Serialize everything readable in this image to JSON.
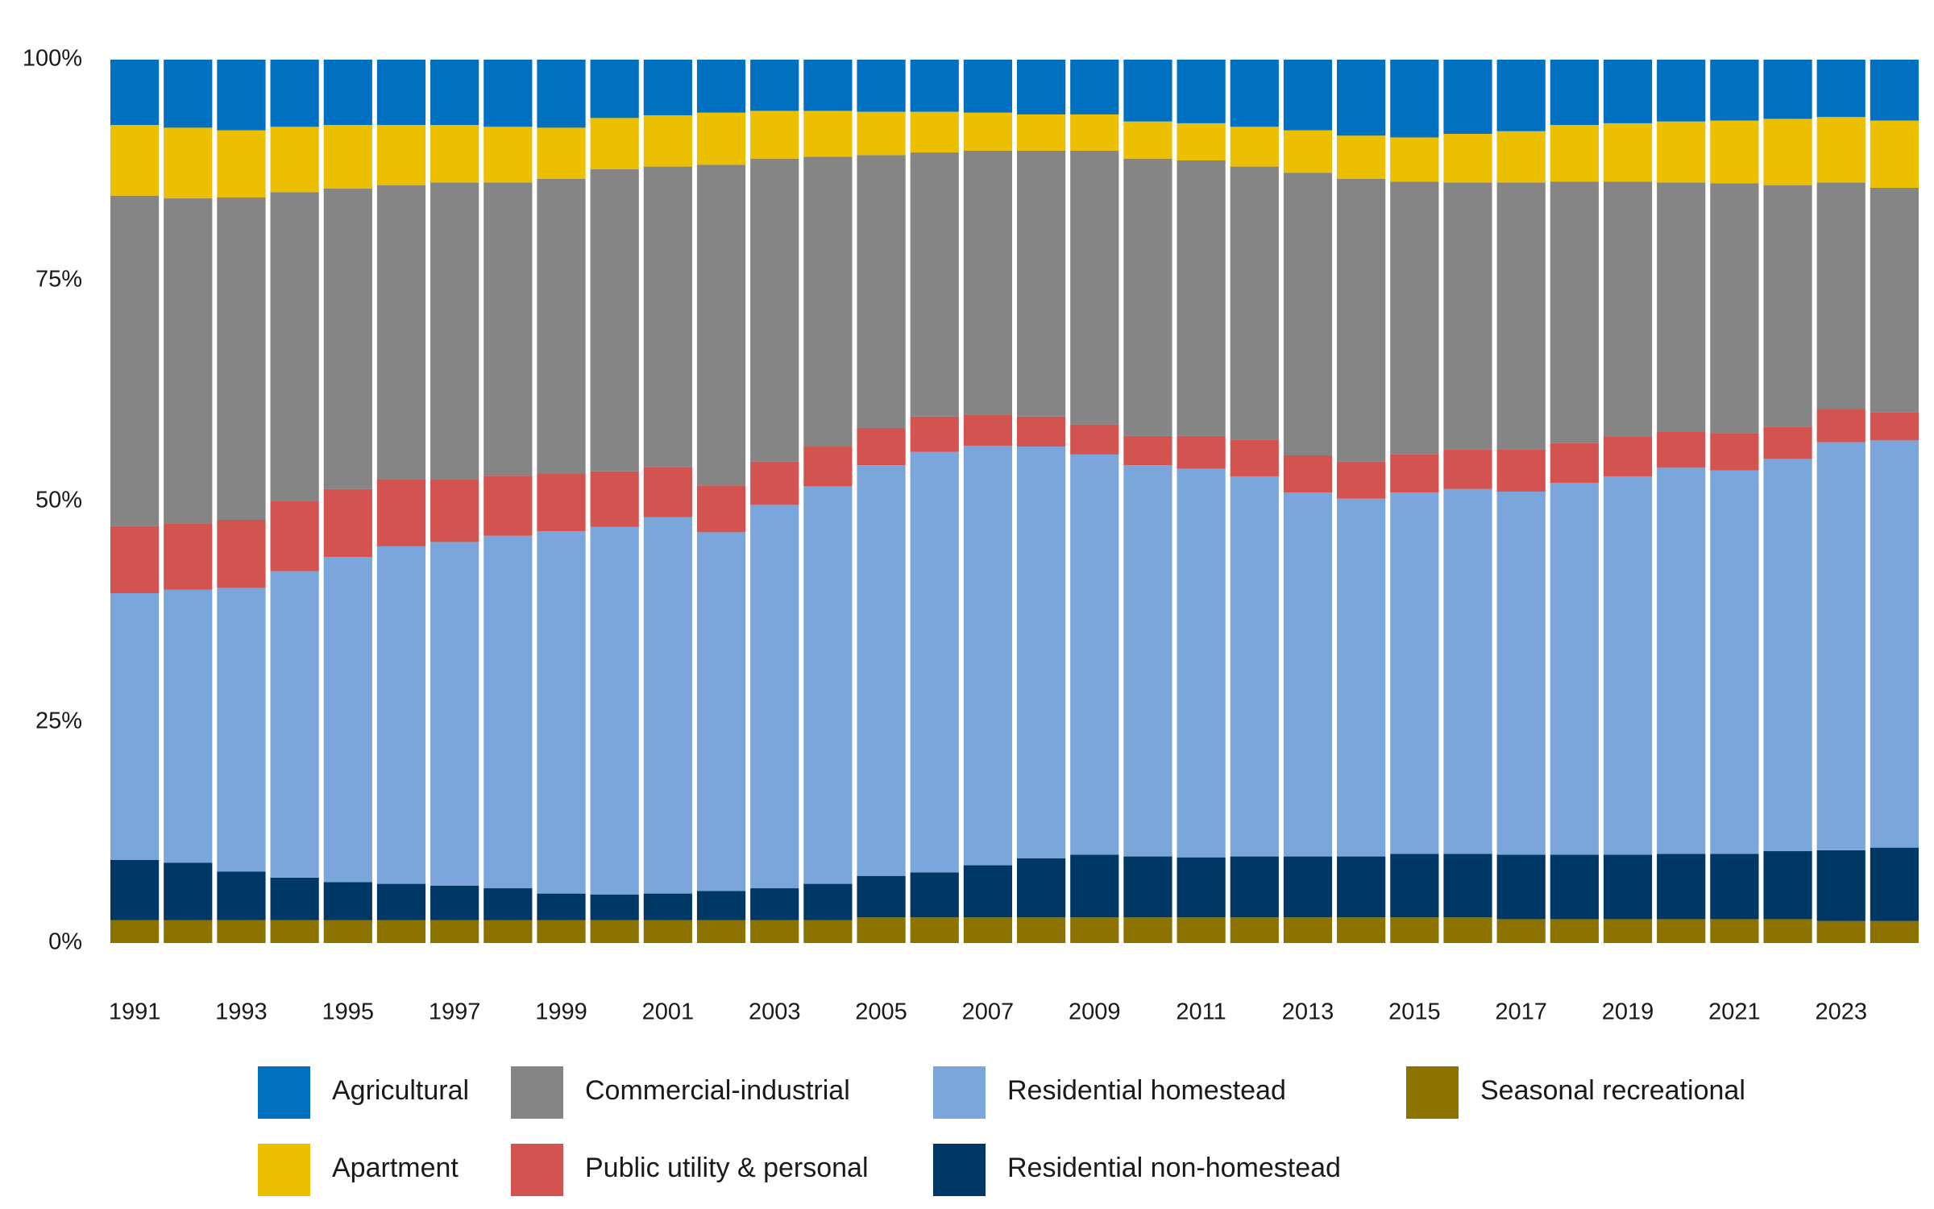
{
  "chart_data": {
    "type": "stacked-bar",
    "categories": [
      "1991",
      null,
      "1993",
      null,
      "1995",
      null,
      "1997",
      null,
      "1999",
      null,
      "2001",
      null,
      "2003",
      null,
      "2005",
      null,
      "2007",
      null,
      "2009",
      null,
      "2011",
      null,
      "2013",
      null,
      "2015",
      null,
      "2017",
      null,
      "2019",
      null,
      "2021",
      null,
      "2023",
      null
    ],
    "series": [
      {
        "name": "Seasonal recreational",
        "color": "#8c7300",
        "values": [
          2.6,
          2.6,
          2.6,
          2.6,
          2.6,
          2.6,
          2.6,
          2.6,
          2.6,
          2.6,
          2.6,
          2.6,
          2.6,
          2.6,
          2.9,
          2.9,
          2.9,
          2.9,
          2.9,
          2.9,
          2.9,
          2.9,
          2.9,
          2.9,
          2.9,
          2.9,
          2.7,
          2.7,
          2.7,
          2.7,
          2.7,
          2.7,
          2.5,
          2.5
        ]
      },
      {
        "name": "Residential non-homestead",
        "color": "#003865",
        "values": [
          6.8,
          6.5,
          5.5,
          4.8,
          4.3,
          4.1,
          3.9,
          3.6,
          3.0,
          2.9,
          3.0,
          3.3,
          3.6,
          4.1,
          4.7,
          5.1,
          5.9,
          6.7,
          7.1,
          6.9,
          6.8,
          6.9,
          6.9,
          6.9,
          7.2,
          7.2,
          7.3,
          7.3,
          7.3,
          7.4,
          7.4,
          7.7,
          8.0,
          8.3
        ]
      },
      {
        "name": "Residential homestead",
        "color": "#7ba6dc",
        "values": [
          30.2,
          30.9,
          32.1,
          34.7,
          36.8,
          38.2,
          38.9,
          39.9,
          41.0,
          41.6,
          42.6,
          40.6,
          43.4,
          45.0,
          46.5,
          47.6,
          47.5,
          46.6,
          45.3,
          44.3,
          44.0,
          43.0,
          41.2,
          40.5,
          40.9,
          41.3,
          41.1,
          42.1,
          42.8,
          43.7,
          43.4,
          44.4,
          46.2,
          46.1
        ]
      },
      {
        "name": "Public utility & personal",
        "color": "#d2534f",
        "values": [
          7.6,
          7.5,
          7.7,
          7.9,
          7.7,
          7.6,
          7.1,
          6.8,
          6.5,
          6.3,
          5.7,
          5.3,
          4.9,
          4.5,
          4.2,
          4.0,
          3.5,
          3.4,
          3.4,
          3.3,
          3.7,
          4.2,
          4.2,
          4.2,
          4.3,
          4.5,
          4.8,
          4.5,
          4.5,
          4.1,
          4.2,
          3.6,
          3.7,
          3.2
        ]
      },
      {
        "name": "Commercial-industrial",
        "color": "#858585",
        "values": [
          37.4,
          36.8,
          36.5,
          35.0,
          34.0,
          33.3,
          33.6,
          33.2,
          33.4,
          34.2,
          34.0,
          36.3,
          34.3,
          32.8,
          30.9,
          29.9,
          29.9,
          30.1,
          31.0,
          31.4,
          31.2,
          30.9,
          32.0,
          32.0,
          30.9,
          30.2,
          30.2,
          29.6,
          28.9,
          28.2,
          28.3,
          27.4,
          25.7,
          25.4
        ]
      },
      {
        "name": "Apartment",
        "color": "#ecbf00",
        "values": [
          8.0,
          8.0,
          7.6,
          7.4,
          7.2,
          6.8,
          6.5,
          6.3,
          5.8,
          5.8,
          5.8,
          5.9,
          5.4,
          5.2,
          4.9,
          4.6,
          4.3,
          4.1,
          4.1,
          4.2,
          4.2,
          4.5,
          4.8,
          4.9,
          5.0,
          5.5,
          5.8,
          6.4,
          6.6,
          6.9,
          7.1,
          7.5,
          7.4,
          7.6
        ]
      },
      {
        "name": "Agricultural",
        "color": "#0070c0",
        "values": [
          7.4,
          7.7,
          8.0,
          7.6,
          7.4,
          7.4,
          7.4,
          7.6,
          7.7,
          6.6,
          6.3,
          6.0,
          5.8,
          5.8,
          5.9,
          5.9,
          6.0,
          6.2,
          6.2,
          7.0,
          7.2,
          7.6,
          8.0,
          8.6,
          8.8,
          8.4,
          8.1,
          7.4,
          7.2,
          7.0,
          6.9,
          6.7,
          6.5,
          6.9
        ]
      }
    ],
    "ylim": [
      0,
      100
    ],
    "yticks": [
      {
        "value": 0,
        "label": "0%"
      },
      {
        "value": 25,
        "label": "25%"
      },
      {
        "value": 50,
        "label": "50%"
      },
      {
        "value": 75,
        "label": "75%"
      },
      {
        "value": 100,
        "label": "100%"
      }
    ],
    "grid": false
  }
}
